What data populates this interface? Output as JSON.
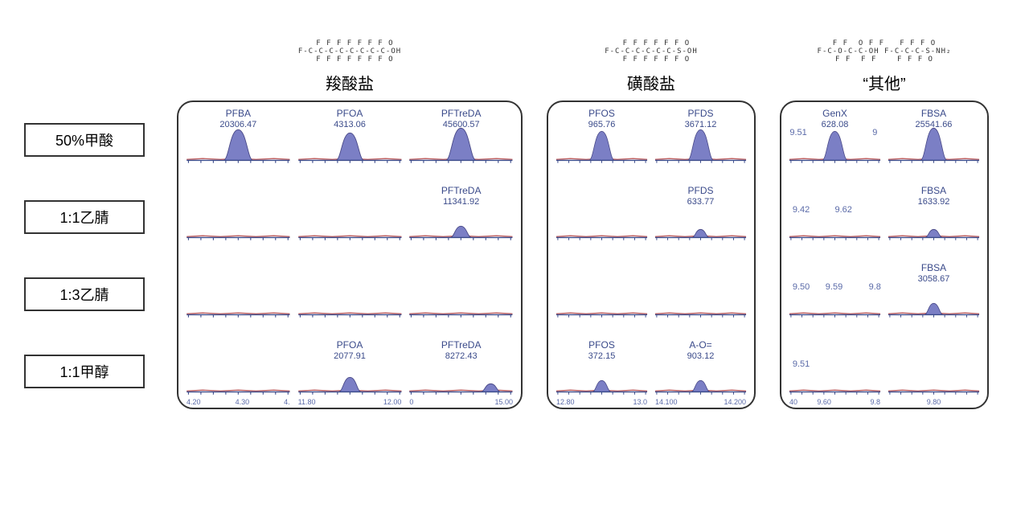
{
  "colors": {
    "peak_fill": "#7b7fc5",
    "peak_stroke": "#4a4a88",
    "baseline": "#c06060",
    "axis": "#3a4a8a",
    "tick_text": "#5a6aa8",
    "box_border": "#333333",
    "bg": "#ffffff"
  },
  "row_labels": [
    "50%甲酸",
    "1:1乙腈",
    "1:3乙腈",
    "1:1甲醇"
  ],
  "groups": [
    {
      "title": "羧酸盐",
      "structure_hint": "perfluoro-carboxylic",
      "cols": 3,
      "rows": [
        {
          "cells": [
            {
              "name": "PFBA",
              "value": "20306.47",
              "peak": 0.95,
              "ticks": []
            },
            {
              "name": "PFOA",
              "value": "4313.06",
              "peak": 0.85,
              "ticks": []
            },
            {
              "name": "PFTreDA",
              "value": "45600.57",
              "peak": 1.0,
              "ticks": []
            }
          ]
        },
        {
          "cells": [
            {
              "peak": 0.0,
              "ticks": []
            },
            {
              "peak": 0.0,
              "ticks": []
            },
            {
              "name": "PFTreDA",
              "value": "11341.92",
              "peak": 0.35,
              "ticks": []
            }
          ]
        },
        {
          "cells": [
            {
              "peak": 0.0,
              "ticks": []
            },
            {
              "peak": 0.0,
              "ticks": []
            },
            {
              "peak": 0.0,
              "ticks": []
            }
          ]
        },
        {
          "cells": [
            {
              "peak": 0.0,
              "ticks": [
                "4.20",
                "4.30",
                "4."
              ]
            },
            {
              "name": "PFOA",
              "value": "2077.91",
              "peak": 0.45,
              "ticks": [
                "11.80",
                "",
                "12.00"
              ]
            },
            {
              "name": "PFTreDA",
              "value": "8272.43",
              "peak": 0.25,
              "peak_x": 0.78,
              "ticks": [
                "0",
                "",
                "15.00"
              ]
            }
          ]
        }
      ]
    },
    {
      "title": "磺酸盐",
      "structure_hint": "perfluoro-sulfonic",
      "cols": 2,
      "rows": [
        {
          "cells": [
            {
              "name": "PFOS",
              "value": "965.76",
              "peak": 0.9,
              "ticks": []
            },
            {
              "name": "PFDS",
              "value": "3671.12",
              "peak": 0.95,
              "ticks": []
            }
          ]
        },
        {
          "cells": [
            {
              "peak": 0.0,
              "ticks": []
            },
            {
              "name": "PFDS",
              "value": "633.77",
              "peak": 0.25,
              "ticks": []
            }
          ]
        },
        {
          "cells": [
            {
              "peak": 0.0,
              "ticks": []
            },
            {
              "peak": 0.0,
              "ticks": []
            }
          ]
        },
        {
          "cells": [
            {
              "name": "PFOS",
              "value": "372.15",
              "peak": 0.35,
              "ticks": [
                "12.80",
                "",
                "13.0"
              ]
            },
            {
              "name": "A-O=",
              "value": "903.12",
              "peak": 0.35,
              "ticks": [
                "14.100",
                "",
                "14.200"
              ]
            }
          ]
        }
      ]
    },
    {
      "title": "“其他”",
      "structure_hint": "ether+sulfonamide",
      "cols": 2,
      "rows": [
        {
          "cells": [
            {
              "name": "GenX",
              "value": "628.08",
              "peak": 0.9,
              "annots": [
                {
                  "t": "9.51",
                  "x": 2
                },
                {
                  "t": "9",
                  "x": 90
                }
              ],
              "ticks": []
            },
            {
              "name": "FBSA",
              "value": "25541.66",
              "peak": 1.0,
              "ticks": []
            }
          ]
        },
        {
          "cells": [
            {
              "peak": 0.0,
              "annots": [
                {
                  "t": "9.42",
                  "x": 5
                },
                {
                  "t": "9.62",
                  "x": 50
                }
              ],
              "ticks": []
            },
            {
              "name": "FBSA",
              "value": "1633.92",
              "peak": 0.25,
              "ticks": []
            }
          ]
        },
        {
          "cells": [
            {
              "peak": 0.0,
              "annots": [
                {
                  "t": "9.50",
                  "x": 5
                },
                {
                  "t": "9.59",
                  "x": 40
                },
                {
                  "t": "9.8",
                  "x": 86
                }
              ],
              "ticks": []
            },
            {
              "name": "FBSA",
              "value": "3058.67",
              "peak": 0.35,
              "ticks": []
            }
          ]
        },
        {
          "cells": [
            {
              "peak": 0.0,
              "annots": [
                {
                  "t": "9.51",
                  "x": 5
                }
              ],
              "ticks": [
                "40",
                "9.60",
                "",
                "9.8"
              ]
            },
            {
              "peak": 0.0,
              "ticks": [
                "",
                "9.80",
                ""
              ]
            }
          ]
        }
      ]
    }
  ]
}
